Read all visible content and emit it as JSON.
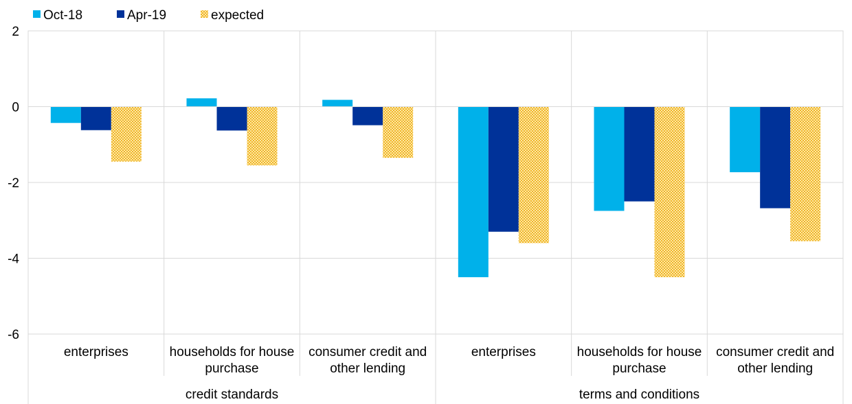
{
  "chart_data": {
    "type": "bar",
    "groups": [
      {
        "label": "credit standards",
        "categories": [
          "enterprises",
          "households for house purchase",
          "consumer credit and other lending"
        ]
      },
      {
        "label": "terms and conditions",
        "categories": [
          "enterprises",
          "households for house purchase",
          "consumer credit and other lending"
        ]
      }
    ],
    "category_labels": [
      [
        "enterprises"
      ],
      [
        "households for house",
        "purchase"
      ],
      [
        "consumer credit and",
        "other lending"
      ],
      [
        "enterprises"
      ],
      [
        "households for house",
        "purchase"
      ],
      [
        "consumer credit and",
        "other lending"
      ]
    ],
    "series": [
      {
        "name": "Oct-18",
        "color": "#00b1ea",
        "pattern": "solid",
        "values": [
          -0.43,
          0.22,
          0.18,
          -4.5,
          -2.75,
          -1.73
        ]
      },
      {
        "name": "Apr-19",
        "color": "#003299",
        "pattern": "solid",
        "values": [
          -0.62,
          -0.63,
          -0.49,
          -3.3,
          -2.5,
          -2.68
        ]
      },
      {
        "name": "expected",
        "color": "#ffb400",
        "pattern": "dotted",
        "values": [
          -1.45,
          -1.55,
          -1.35,
          -3.6,
          -4.5,
          -3.55
        ]
      }
    ],
    "ylim": [
      -6,
      2
    ],
    "yticks": [
      2,
      0,
      -2,
      -4,
      -6
    ],
    "grid": true,
    "legend_position": "top-left"
  }
}
